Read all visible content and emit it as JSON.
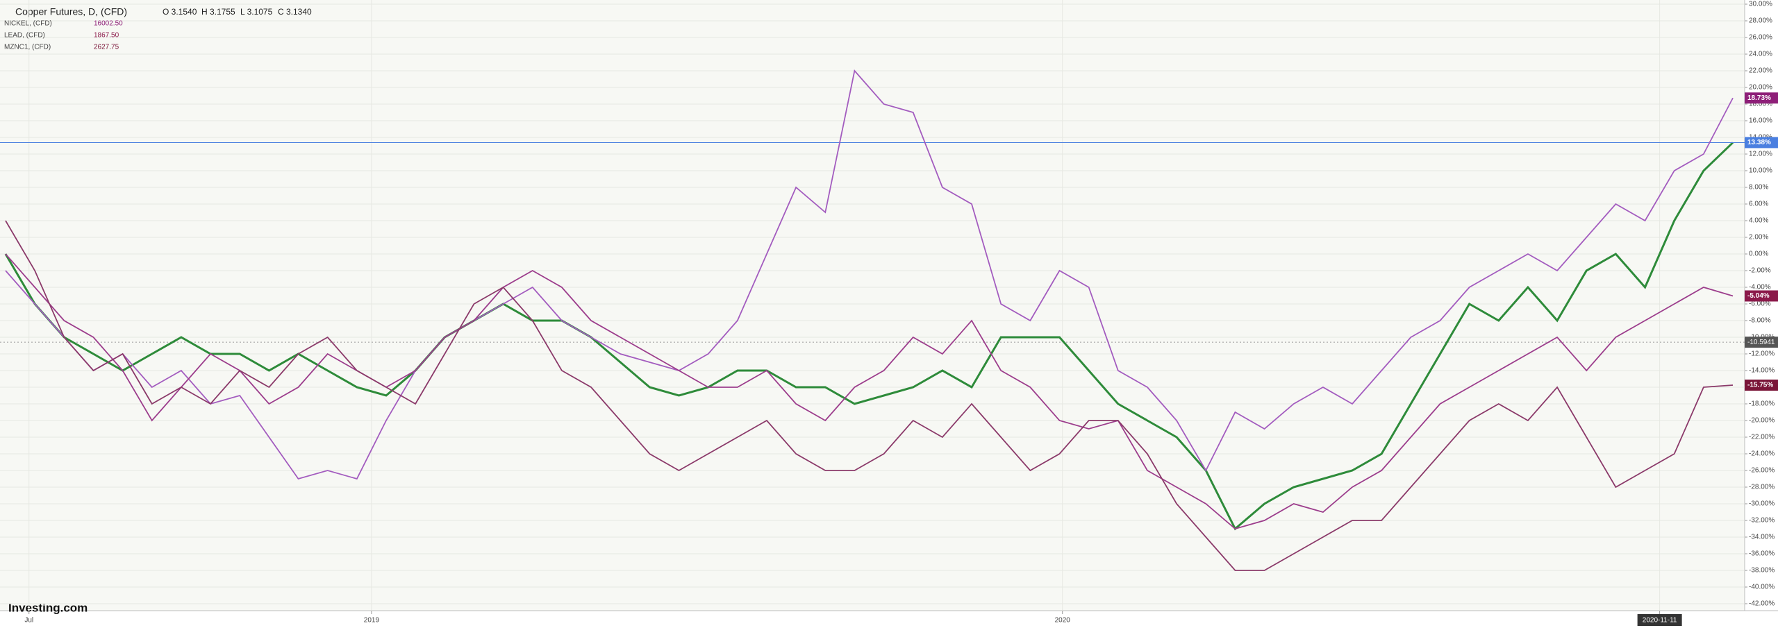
{
  "chart_data": {
    "type": "line",
    "title": "Copper Futures, D, (CFD)",
    "ohlc_labels": [
      "O 3.1540",
      "H 3.1755",
      "L 3.1075",
      "C 3.1340"
    ],
    "brand": "Investing.com",
    "xlim": [
      0,
      59
    ],
    "xticks": [
      {
        "value": 0.8,
        "label": "Jul"
      },
      {
        "value": 12.5,
        "label": "2019"
      },
      {
        "value": 36.1,
        "label": "2020"
      },
      {
        "value": 56.5,
        "label": "2020-11-11"
      }
    ],
    "ylim": [
      -42,
      30
    ],
    "yticks": [
      {
        "value": 30,
        "label": "30.00%"
      },
      {
        "value": 28,
        "label": "28.00%"
      },
      {
        "value": 26,
        "label": "26.00%"
      },
      {
        "value": 24,
        "label": "24.00%"
      },
      {
        "value": 22,
        "label": "22.00%"
      },
      {
        "value": 20,
        "label": "20.00%"
      },
      {
        "value": 18,
        "label": "18.00%"
      },
      {
        "value": 16,
        "label": "16.00%"
      },
      {
        "value": 14,
        "label": "14.00%"
      },
      {
        "value": 12,
        "label": "12.00%"
      },
      {
        "value": 10,
        "label": "10.00%"
      },
      {
        "value": 8,
        "label": "8.00%"
      },
      {
        "value": 6,
        "label": "6.00%"
      },
      {
        "value": 4,
        "label": "4.00%"
      },
      {
        "value": 2,
        "label": "2.00%"
      },
      {
        "value": 0,
        "label": "0.00%"
      },
      {
        "value": -2,
        "label": "-2.00%"
      },
      {
        "value": -4,
        "label": "-4.00%"
      },
      {
        "value": -6,
        "label": "-6.00%"
      },
      {
        "value": -8,
        "label": "-8.00%"
      },
      {
        "value": -10,
        "label": "-10.00%"
      },
      {
        "value": -12,
        "label": "-12.00%"
      },
      {
        "value": -14,
        "label": "-14.00%"
      },
      {
        "value": -16,
        "label": "-16.00%"
      },
      {
        "value": -18,
        "label": "-18.00%"
      },
      {
        "value": -20,
        "label": "-20.00%"
      },
      {
        "value": -22,
        "label": "-22.00%"
      },
      {
        "value": -24,
        "label": "-24.00%"
      },
      {
        "value": -26,
        "label": "-26.00%"
      },
      {
        "value": -28,
        "label": "-28.00%"
      },
      {
        "value": -30,
        "label": "-30.00%"
      },
      {
        "value": -32,
        "label": "-32.00%"
      },
      {
        "value": -34,
        "label": "-34.00%"
      },
      {
        "value": -36,
        "label": "-36.00%"
      },
      {
        "value": -38,
        "label": "-38.00%"
      },
      {
        "value": -40,
        "label": "-40.00%"
      },
      {
        "value": -42,
        "label": "-42.00%"
      }
    ],
    "grid": true,
    "crosshair": -10.5941,
    "series": [
      {
        "name": "Copper Futures, D, (CFD)",
        "color": "#2e8b3a",
        "end_label": "13.38%",
        "label_color": "#4a7fe0",
        "values": [
          0,
          -6,
          -10,
          -12,
          -14,
          -12,
          -10,
          -12,
          -12,
          -14,
          -12,
          -14,
          -16,
          -17,
          -14,
          -10,
          -8,
          -6,
          -8,
          -8,
          -10,
          -13,
          -16,
          -17,
          -16,
          -14,
          -14,
          -16,
          -16,
          -18,
          -17,
          -16,
          -14,
          -16,
          -10,
          -10,
          -10,
          -14,
          -18,
          -20,
          -22,
          -26,
          -33,
          -30,
          -28,
          -27,
          -26,
          -24,
          -18,
          -12,
          -6,
          -8,
          -4,
          -8,
          -2,
          0,
          -4,
          4,
          10,
          13.38
        ]
      },
      {
        "name": "NICKEL, (CFD)",
        "last": "16002.50",
        "color": "#a35cbf",
        "end_label": "18.73%",
        "label_color": "#8e1f78",
        "values": [
          -2,
          -6,
          -10,
          -14,
          -12,
          -16,
          -14,
          -18,
          -17,
          -22,
          -27,
          -26,
          -27,
          -20,
          -14,
          -10,
          -8,
          -6,
          -4,
          -8,
          -10,
          -12,
          -13,
          -14,
          -12,
          -8,
          0,
          8,
          5,
          22,
          18,
          17,
          8,
          6,
          -6,
          -8,
          -2,
          -4,
          -14,
          -16,
          -20,
          -26,
          -19,
          -21,
          -18,
          -16,
          -18,
          -14,
          -10,
          -8,
          -4,
          -2,
          0,
          -2,
          2,
          6,
          4,
          10,
          12,
          18.73
        ]
      },
      {
        "name": "LEAD, (CFD)",
        "last": "1867.50",
        "color": "#9c3d8c",
        "end_label": "-5.04%",
        "label_color": "#8b1a4a",
        "values": [
          0,
          -4,
          -8,
          -10,
          -14,
          -20,
          -16,
          -12,
          -14,
          -18,
          -16,
          -12,
          -14,
          -16,
          -14,
          -10,
          -8,
          -4,
          -2,
          -4,
          -8,
          -10,
          -12,
          -14,
          -16,
          -16,
          -14,
          -18,
          -20,
          -16,
          -14,
          -10,
          -12,
          -8,
          -14,
          -16,
          -20,
          -21,
          -20,
          -26,
          -28,
          -30,
          -33,
          -32,
          -30,
          -31,
          -28,
          -26,
          -22,
          -18,
          -16,
          -14,
          -12,
          -10,
          -14,
          -10,
          -8,
          -6,
          -4,
          -5.04
        ]
      },
      {
        "name": "MZNC1, (CFD)",
        "last": "2627.75",
        "color": "#8b3a6a",
        "end_label": "-15.75%",
        "label_color": "#7a1538",
        "values": [
          4,
          -2,
          -10,
          -14,
          -12,
          -18,
          -16,
          -18,
          -14,
          -16,
          -12,
          -10,
          -14,
          -16,
          -18,
          -12,
          -6,
          -4,
          -8,
          -14,
          -16,
          -20,
          -24,
          -26,
          -24,
          -22,
          -20,
          -24,
          -26,
          -26,
          -24,
          -20,
          -22,
          -18,
          -22,
          -26,
          -24,
          -20,
          -20,
          -24,
          -30,
          -34,
          -38,
          -38,
          -36,
          -34,
          -32,
          -32,
          -28,
          -24,
          -20,
          -18,
          -20,
          -16,
          -22,
          -28,
          -26,
          -24,
          -16,
          -15.75
        ]
      }
    ]
  }
}
